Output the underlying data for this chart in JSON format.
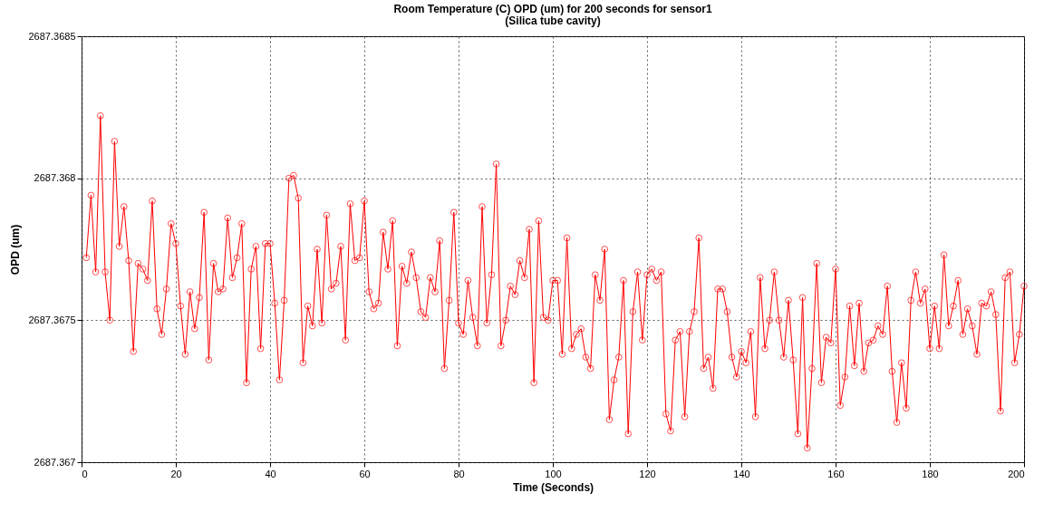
{
  "chart_data": {
    "type": "line",
    "title": "Room Temperature (C) OPD (um) for 200 seconds for sensor1",
    "subtitle": "(Silica tube cavity)",
    "xlabel": "Time (Seconds)",
    "ylabel": "OPD (um)",
    "x": [
      1,
      2,
      3,
      4,
      5,
      6,
      7,
      8,
      9,
      10,
      11,
      12,
      13,
      14,
      15,
      16,
      17,
      18,
      19,
      20,
      21,
      22,
      23,
      24,
      25,
      26,
      27,
      28,
      29,
      30,
      31,
      32,
      33,
      34,
      35,
      36,
      37,
      38,
      39,
      40,
      41,
      42,
      43,
      44,
      45,
      46,
      47,
      48,
      49,
      50,
      51,
      52,
      53,
      54,
      55,
      56,
      57,
      58,
      59,
      60,
      61,
      62,
      63,
      64,
      65,
      66,
      67,
      68,
      69,
      70,
      71,
      72,
      73,
      74,
      75,
      76,
      77,
      78,
      79,
      80,
      81,
      82,
      83,
      84,
      85,
      86,
      87,
      88,
      89,
      90,
      91,
      92,
      93,
      94,
      95,
      96,
      97,
      98,
      99,
      100,
      101,
      102,
      103,
      104,
      105,
      106,
      107,
      108,
      109,
      110,
      111,
      112,
      113,
      114,
      115,
      116,
      117,
      118,
      119,
      120,
      121,
      122,
      123,
      124,
      125,
      126,
      127,
      128,
      129,
      130,
      131,
      132,
      133,
      134,
      135,
      136,
      137,
      138,
      139,
      140,
      141,
      142,
      143,
      144,
      145,
      146,
      147,
      148,
      149,
      150,
      151,
      152,
      153,
      154,
      155,
      156,
      157,
      158,
      159,
      160,
      161,
      162,
      163,
      164,
      165,
      166,
      167,
      168,
      169,
      170,
      171,
      172,
      173,
      174,
      175,
      176,
      177,
      178,
      179,
      180,
      181,
      182,
      183,
      184,
      185,
      186,
      187,
      188,
      189,
      190,
      191,
      192,
      193,
      194,
      195,
      196,
      197,
      198,
      199,
      200
    ],
    "series": [
      {
        "color": "#ff0000",
        "values": [
          2687.36772,
          2687.36794,
          2687.36767,
          2687.36822,
          2687.36767,
          2687.3675,
          2687.36813,
          2687.36776,
          2687.3679,
          2687.36771,
          2687.36739,
          2687.3677,
          2687.36768,
          2687.36764,
          2687.36792,
          2687.36754,
          2687.36745,
          2687.36761,
          2687.36784,
          2687.36777,
          2687.36755,
          2687.36738,
          2687.3676,
          2687.36747,
          2687.36758,
          2687.36788,
          2687.36736,
          2687.3677,
          2687.3676,
          2687.36761,
          2687.36786,
          2687.36765,
          2687.36772,
          2687.36784,
          2687.36728,
          2687.36768,
          2687.36776,
          2687.3674,
          2687.36777,
          2687.36777,
          2687.36756,
          2687.36729,
          2687.36757,
          2687.368,
          2687.36801,
          2687.36793,
          2687.36735,
          2687.36755,
          2687.36748,
          2687.36775,
          2687.36749,
          2687.36787,
          2687.36761,
          2687.36763,
          2687.36776,
          2687.36743,
          2687.36791,
          2687.36771,
          2687.36772,
          2687.36792,
          2687.3676,
          2687.36754,
          2687.36756,
          2687.36781,
          2687.36768,
          2687.36785,
          2687.36741,
          2687.36769,
          2687.36763,
          2687.36774,
          2687.36765,
          2687.36753,
          2687.36751,
          2687.36765,
          2687.3676,
          2687.36778,
          2687.36733,
          2687.36757,
          2687.36788,
          2687.36749,
          2687.36745,
          2687.36764,
          2687.36751,
          2687.36741,
          2687.3679,
          2687.36749,
          2687.36766,
          2687.36805,
          2687.36741,
          2687.3675,
          2687.36762,
          2687.36759,
          2687.36771,
          2687.36765,
          2687.36782,
          2687.36728,
          2687.36785,
          2687.36751,
          2687.3675,
          2687.36764,
          2687.36764,
          2687.36738,
          2687.36779,
          2687.3674,
          2687.36745,
          2687.36747,
          2687.36737,
          2687.36733,
          2687.36766,
          2687.36757,
          2687.36775,
          2687.36715,
          2687.36729,
          2687.36737,
          2687.36764,
          2687.3671,
          2687.36753,
          2687.36767,
          2687.36743,
          2687.36766,
          2687.36768,
          2687.36764,
          2687.36767,
          2687.36717,
          2687.36711,
          2687.36743,
          2687.36746,
          2687.36716,
          2687.36746,
          2687.36753,
          2687.36779,
          2687.36733,
          2687.36737,
          2687.36726,
          2687.36761,
          2687.36761,
          2687.36753,
          2687.36737,
          2687.3673,
          2687.36739,
          2687.36735,
          2687.36746,
          2687.36716,
          2687.36765,
          2687.3674,
          2687.3675,
          2687.36767,
          2687.3675,
          2687.36737,
          2687.36757,
          2687.36736,
          2687.3671,
          2687.36758,
          2687.36705,
          2687.36733,
          2687.3677,
          2687.36728,
          2687.36744,
          2687.36742,
          2687.36768,
          2687.3672,
          2687.3673,
          2687.36755,
          2687.36734,
          2687.36756,
          2687.36732,
          2687.36742,
          2687.36743,
          2687.36748,
          2687.36745,
          2687.36762,
          2687.36732,
          2687.36714,
          2687.36735,
          2687.36719,
          2687.36757,
          2687.36767,
          2687.36756,
          2687.36761,
          2687.3674,
          2687.36755,
          2687.3674,
          2687.36773,
          2687.36748,
          2687.36755,
          2687.36764,
          2687.36745,
          2687.36754,
          2687.36748,
          2687.36738,
          2687.36756,
          2687.36755,
          2687.3676,
          2687.36752,
          2687.36718,
          2687.36765,
          2687.36767,
          2687.36735,
          2687.36745,
          2687.36762
        ]
      }
    ],
    "xlim": [
      0,
      200
    ],
    "xticks": [
      0,
      20,
      40,
      60,
      80,
      100,
      120,
      140,
      160,
      180,
      200
    ],
    "ylim": [
      2687.367,
      2687.3685
    ],
    "yticks": [
      2687.367,
      2687.3675,
      2687.368,
      2687.3685
    ],
    "grid": true,
    "marker": "circle",
    "line_style": "solid"
  }
}
